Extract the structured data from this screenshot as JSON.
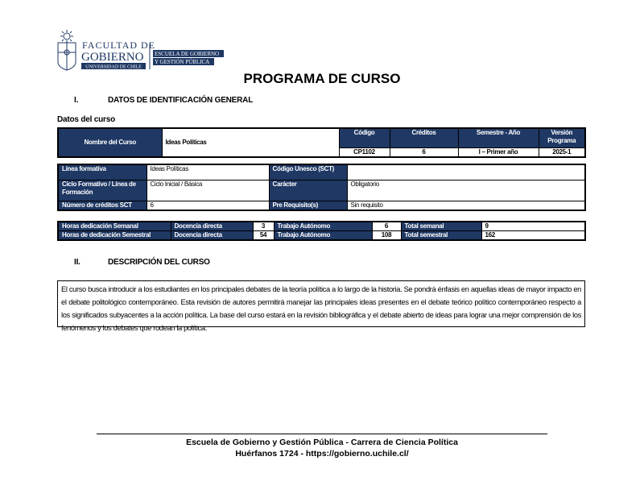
{
  "header": {
    "logo_text": [
      "FACULTAD DE",
      "GOBIERNO",
      "UNIVERSIDAD DE CHILE",
      "ESCUELA DE GOBIERNO",
      "Y GESTIÓN PÚBLICA"
    ],
    "title": "PROGRAMA DE CURSO",
    "brand_color": "#1f3864"
  },
  "section1": {
    "num": "I.",
    "title": "DATOS DE IDENTIFICACIÓN GENERAL",
    "subtitle": "Datos del curso"
  },
  "course": {
    "name_label": "Nombre del Curso",
    "name": "Ideas Políticas",
    "code_label": "Código",
    "code": "CP1102",
    "credits_label": "Créditos",
    "credits": "6",
    "semester_label": "Semestre - Año",
    "semester": "I – Primer año",
    "version_label": "Versión Programa",
    "version": "2025-1"
  },
  "details": {
    "linea_label": "Línea formativa",
    "linea": "Ideas Políticas",
    "unesco_label": "Código Unesco (SCT)",
    "unesco": "",
    "ciclo_label": "Ciclo Formativo / Línea de Formación",
    "ciclo": "Ciclo Inicial / Básica",
    "caracter_label": "Carácter",
    "caracter": "Obligatorio",
    "sct_label": "Número de créditos SCT",
    "sct": "6",
    "prereq_label": "Pre Requisito(s)",
    "prereq": "Sin requisito"
  },
  "hours": [
    {
      "label": "Horas dedicación Semanal",
      "docencia_label": "Docencia directa",
      "docencia": "3",
      "autonomo_label": "Trabajo Autónomo",
      "autonomo": "6",
      "total_label": "Total semanal",
      "total": "9"
    },
    {
      "label": "Horas de dedicación Semestral",
      "docencia_label": "Docencia directa",
      "docencia": "54",
      "autonomo_label": "Trabajo Autónomo",
      "autonomo": "108",
      "total_label": "Total semestral",
      "total": "162"
    }
  ],
  "section2": {
    "num": "II.",
    "title": "DESCRIPCIÓN DEL CURSO",
    "text": "El curso busca introducir a los estudiantes en los principales debates de la teoría política a lo largo de la historia. Se pondrá énfasis en aquellas ideas de mayor impacto en el debate politológico contemporáneo. Esta revisión de autores permitirá manejar las principales ideas presentes en el debate teórico político contemporáneo respecto a los significados subyacentes a la acción política. La base del curso estará en la revisión bibliográfica y el debate abierto de ideas para lograr una mejor comprensión de los fenómenos y los debates que rodean la política."
  },
  "footer": {
    "line1": "Escuela de Gobierno y Gestión Pública - Carrera de Ciencia Política",
    "line2": "Huérfanos 1724 - https://gobierno.uchile.cl/"
  }
}
